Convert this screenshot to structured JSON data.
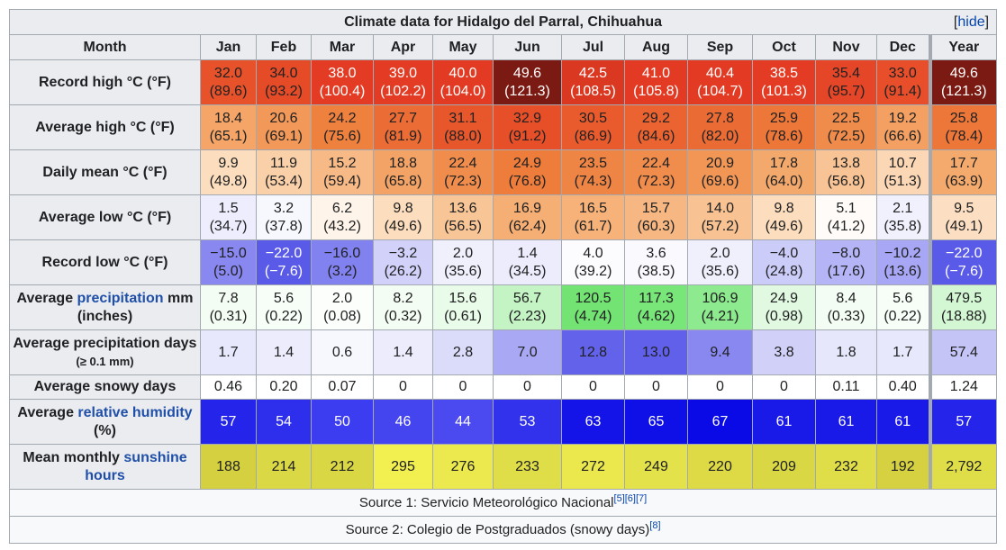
{
  "title": "Climate data for Hidalgo del Parral, Chihuahua",
  "hide_link": "hide",
  "header": {
    "label": "Month",
    "months": [
      "Jan",
      "Feb",
      "Mar",
      "Apr",
      "May",
      "Jun",
      "Jul",
      "Aug",
      "Sep",
      "Oct",
      "Nov",
      "Dec"
    ],
    "year": "Year"
  },
  "rows": [
    {
      "kind": "temp",
      "label": {
        "pre": "Record high °C (°F)",
        "link": "",
        "post": "",
        "small": ""
      },
      "cells": [
        [
          "32.0",
          "(89.6)"
        ],
        [
          "34.0",
          "(93.2)"
        ],
        [
          "38.0",
          "(100.4)"
        ],
        [
          "39.0",
          "(102.2)"
        ],
        [
          "40.0",
          "(104.0)"
        ],
        [
          "49.6",
          "(121.3)"
        ],
        [
          "42.5",
          "(108.5)"
        ],
        [
          "41.0",
          "(105.8)"
        ],
        [
          "40.4",
          "(104.7)"
        ],
        [
          "38.5",
          "(101.3)"
        ],
        [
          "35.4",
          "(95.7)"
        ],
        [
          "33.0",
          "(91.4)"
        ],
        [
          "49.6",
          "(121.3)"
        ]
      ]
    },
    {
      "kind": "temp",
      "label": {
        "pre": "Average high °C (°F)",
        "link": "",
        "post": "",
        "small": ""
      },
      "cells": [
        [
          "18.4",
          "(65.1)"
        ],
        [
          "20.6",
          "(69.1)"
        ],
        [
          "24.2",
          "(75.6)"
        ],
        [
          "27.7",
          "(81.9)"
        ],
        [
          "31.1",
          "(88.0)"
        ],
        [
          "32.9",
          "(91.2)"
        ],
        [
          "30.5",
          "(86.9)"
        ],
        [
          "29.2",
          "(84.6)"
        ],
        [
          "27.8",
          "(82.0)"
        ],
        [
          "25.9",
          "(78.6)"
        ],
        [
          "22.5",
          "(72.5)"
        ],
        [
          "19.2",
          "(66.6)"
        ],
        [
          "25.8",
          "(78.4)"
        ]
      ]
    },
    {
      "kind": "temp",
      "label": {
        "pre": "Daily mean °C (°F)",
        "link": "",
        "post": "",
        "small": ""
      },
      "cells": [
        [
          "9.9",
          "(49.8)"
        ],
        [
          "11.9",
          "(53.4)"
        ],
        [
          "15.2",
          "(59.4)"
        ],
        [
          "18.8",
          "(65.8)"
        ],
        [
          "22.4",
          "(72.3)"
        ],
        [
          "24.9",
          "(76.8)"
        ],
        [
          "23.5",
          "(74.3)"
        ],
        [
          "22.4",
          "(72.3)"
        ],
        [
          "20.9",
          "(69.6)"
        ],
        [
          "17.8",
          "(64.0)"
        ],
        [
          "13.8",
          "(56.8)"
        ],
        [
          "10.7",
          "(51.3)"
        ],
        [
          "17.7",
          "(63.9)"
        ]
      ]
    },
    {
      "kind": "temp",
      "label": {
        "pre": "Average low °C (°F)",
        "link": "",
        "post": "",
        "small": ""
      },
      "cells": [
        [
          "1.5",
          "(34.7)"
        ],
        [
          "3.2",
          "(37.8)"
        ],
        [
          "6.2",
          "(43.2)"
        ],
        [
          "9.8",
          "(49.6)"
        ],
        [
          "13.6",
          "(56.5)"
        ],
        [
          "16.9",
          "(62.4)"
        ],
        [
          "16.5",
          "(61.7)"
        ],
        [
          "15.7",
          "(60.3)"
        ],
        [
          "14.0",
          "(57.2)"
        ],
        [
          "9.8",
          "(49.6)"
        ],
        [
          "5.1",
          "(41.2)"
        ],
        [
          "2.1",
          "(35.8)"
        ],
        [
          "9.5",
          "(49.1)"
        ]
      ]
    },
    {
      "kind": "temp",
      "label": {
        "pre": "Record low °C (°F)",
        "link": "",
        "post": "",
        "small": ""
      },
      "cells": [
        [
          "−15.0",
          "(5.0)"
        ],
        [
          "−22.0",
          "(−7.6)"
        ],
        [
          "−16.0",
          "(3.2)"
        ],
        [
          "−3.2",
          "(26.2)"
        ],
        [
          "2.0",
          "(35.6)"
        ],
        [
          "1.4",
          "(34.5)"
        ],
        [
          "4.0",
          "(39.2)"
        ],
        [
          "3.6",
          "(38.5)"
        ],
        [
          "2.0",
          "(35.6)"
        ],
        [
          "−4.0",
          "(24.8)"
        ],
        [
          "−8.0",
          "(17.6)"
        ],
        [
          "−10.2",
          "(13.6)"
        ],
        [
          "−22.0",
          "(−7.6)"
        ]
      ]
    },
    {
      "kind": "precip",
      "label": {
        "pre": "Average ",
        "link": "precipitation",
        "post": " mm (inches)",
        "small": ""
      },
      "cells": [
        [
          "7.8",
          "(0.31)"
        ],
        [
          "5.6",
          "(0.22)"
        ],
        [
          "2.0",
          "(0.08)"
        ],
        [
          "8.2",
          "(0.32)"
        ],
        [
          "15.6",
          "(0.61)"
        ],
        [
          "56.7",
          "(2.23)"
        ],
        [
          "120.5",
          "(4.74)"
        ],
        [
          "117.3",
          "(4.62)"
        ],
        [
          "106.9",
          "(4.21)"
        ],
        [
          "24.9",
          "(0.98)"
        ],
        [
          "8.4",
          "(0.33)"
        ],
        [
          "5.6",
          "(0.22)"
        ],
        [
          "479.5",
          "(18.88)"
        ]
      ]
    },
    {
      "kind": "days",
      "label": {
        "pre": "Average precipitation days ",
        "link": "",
        "post": "",
        "small": "(≥ 0.1 mm)"
      },
      "cells": [
        [
          "1.7"
        ],
        [
          "1.4"
        ],
        [
          "0.6"
        ],
        [
          "1.4"
        ],
        [
          "2.8"
        ],
        [
          "7.0"
        ],
        [
          "12.8"
        ],
        [
          "13.0"
        ],
        [
          "9.4"
        ],
        [
          "3.8"
        ],
        [
          "1.8"
        ],
        [
          "1.7"
        ],
        [
          "57.4"
        ]
      ]
    },
    {
      "kind": "snow",
      "label": {
        "pre": "Average snowy days",
        "link": "",
        "post": "",
        "small": ""
      },
      "cells": [
        [
          "0.46"
        ],
        [
          "0.20"
        ],
        [
          "0.07"
        ],
        [
          "0"
        ],
        [
          "0"
        ],
        [
          "0"
        ],
        [
          "0"
        ],
        [
          "0"
        ],
        [
          "0"
        ],
        [
          "0"
        ],
        [
          "0.11"
        ],
        [
          "0.40"
        ],
        [
          "1.24"
        ]
      ]
    },
    {
      "kind": "humid",
      "label": {
        "pre": "Average ",
        "link": "relative humidity",
        "post": " (%)",
        "small": ""
      },
      "cells": [
        [
          "57"
        ],
        [
          "54"
        ],
        [
          "50"
        ],
        [
          "46"
        ],
        [
          "44"
        ],
        [
          "53"
        ],
        [
          "63"
        ],
        [
          "65"
        ],
        [
          "67"
        ],
        [
          "61"
        ],
        [
          "61"
        ],
        [
          "61"
        ],
        [
          "57"
        ]
      ]
    },
    {
      "kind": "sun",
      "label": {
        "pre": "Mean monthly ",
        "link": "sunshine hours",
        "post": "",
        "small": ""
      },
      "cells": [
        [
          "188"
        ],
        [
          "214"
        ],
        [
          "212"
        ],
        [
          "295"
        ],
        [
          "276"
        ],
        [
          "233"
        ],
        [
          "272"
        ],
        [
          "249"
        ],
        [
          "220"
        ],
        [
          "209"
        ],
        [
          "232"
        ],
        [
          "192"
        ],
        [
          "2,792"
        ]
      ]
    }
  ],
  "sources": [
    {
      "text": "Source 1: Servicio Meteorológico Nacional",
      "refs": [
        "[5]",
        "[6]",
        "[7]"
      ]
    },
    {
      "text": "Source 2: Colegio de Postgraduados (snowy days)",
      "refs": [
        "[8]"
      ]
    }
  ],
  "colors": {
    "header_bg": "#eaecf0",
    "border": "#a2a9b1",
    "link": "#0645ad",
    "source_bg": "#f8f9fa"
  }
}
